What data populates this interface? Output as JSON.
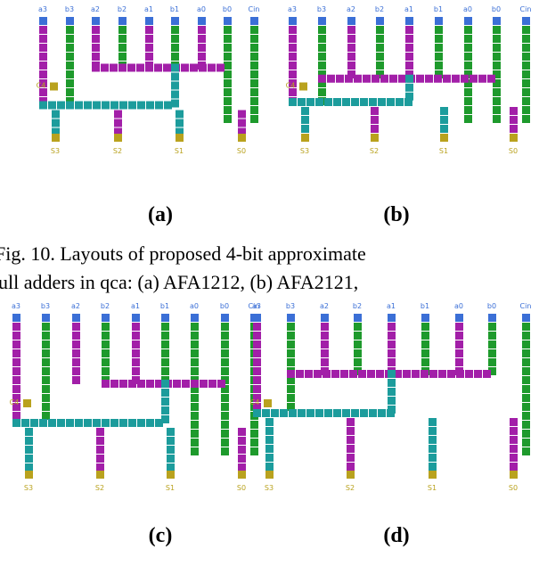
{
  "panels": [
    {
      "caption": "(a)",
      "inputs": [
        "a3",
        "b3",
        "a2",
        "b2",
        "a1",
        "b1",
        "a0",
        "b0",
        "Cin"
      ],
      "carry": "C4",
      "outputs": [
        "S3",
        "S2",
        "S1",
        "S0"
      ]
    },
    {
      "caption": "(b)",
      "inputs": [
        "a3",
        "b3",
        "a2",
        "b2",
        "a1",
        "b1",
        "a0",
        "b0",
        "Cin"
      ],
      "carry": "C4",
      "outputs": [
        "S3",
        "S2",
        "S1",
        "S0"
      ]
    },
    {
      "caption": "(c)",
      "inputs": [
        "a3",
        "b3",
        "a2",
        "b2",
        "a1",
        "b1",
        "a0",
        "b0",
        "Cin"
      ],
      "carry": "C4",
      "outputs": [
        "S3",
        "S2",
        "S1",
        "S0"
      ]
    },
    {
      "caption": "(d)",
      "inputs": [
        "a3",
        "b3",
        "a2",
        "b2",
        "a1",
        "b1",
        "a0",
        "b0",
        "Cin"
      ],
      "carry": "C4",
      "outputs": [
        "S3",
        "S2",
        "S1",
        "S0"
      ]
    }
  ],
  "figure_caption": {
    "lines": [
      "Fig. 10. Layouts of proposed 4-bit approximate",
      "ull adders in qca: (a) AFA1212, (b) AFA2121,"
    ]
  }
}
